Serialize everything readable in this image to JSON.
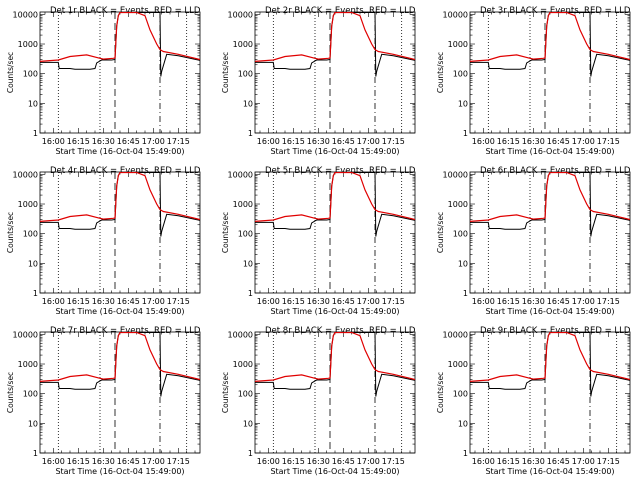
{
  "chart_data": {
    "type": "line",
    "layout": "3x3 grid",
    "xlabel": "Start Time (16-Oct-04 15:49:00)",
    "ylabel": "Counts/sec",
    "x_tick_labels": [
      "16:00",
      "16:15",
      "16:30",
      "16:45",
      "17:00",
      "17:15"
    ],
    "x_tick_minutes": [
      0,
      15,
      30,
      45,
      60,
      75
    ],
    "xlim_minutes_after_16_00": [
      -8,
      88
    ],
    "y_scale": "log",
    "ylim": [
      1,
      12000
    ],
    "y_tick_labels": [
      "1",
      "10",
      "100",
      "1000",
      "10000"
    ],
    "y_tick_values": [
      1,
      10,
      100,
      1000,
      10000
    ],
    "vertical_markers": [
      {
        "minute": 3,
        "style": "dotted"
      },
      {
        "minute": 28,
        "style": "dotted"
      },
      {
        "minute": 37,
        "style": "long-dash"
      },
      {
        "minute": 64,
        "style": "dash-dot"
      },
      {
        "minute": 80,
        "style": "dotted"
      }
    ],
    "series_colors": {
      "events": "#000000",
      "lld": "#e00000"
    },
    "panels": [
      {
        "title": "Det 1r BLACK = Events, RED = LLD"
      },
      {
        "title": "Det 2r BLACK = Events, RED = LLD"
      },
      {
        "title": "Det 3r BLACK = Events, RED = LLD"
      },
      {
        "title": "Det 4r BLACK = Events, RED = LLD"
      },
      {
        "title": "Det 5r BLACK = Events, RED = LLD"
      },
      {
        "title": "Det 6r BLACK = Events, RED = LLD"
      },
      {
        "title": "Det 7r BLACK = Events, RED = LLD"
      },
      {
        "title": "Det 8r BLACK = Events, RED = LLD"
      },
      {
        "title": "Det 9r BLACK = Events, RED = LLD"
      }
    ],
    "events_series": {
      "x": [
        -8,
        3,
        3.5,
        10,
        13,
        22,
        25,
        26,
        28,
        29,
        35,
        37,
        38,
        39,
        40,
        44,
        63,
        64,
        64.5,
        65,
        68,
        75,
        88
      ],
      "y": [
        240,
        240,
        150,
        150,
        140,
        140,
        150,
        230,
        270,
        290,
        290,
        300,
        4000,
        9000,
        11500,
        11500,
        11500,
        11500,
        80,
        120,
        450,
        400,
        280
      ]
    },
    "lld_series": {
      "x": [
        -8,
        3,
        10,
        20,
        28,
        30,
        36,
        37,
        38,
        39,
        40,
        44,
        50,
        55,
        58,
        62,
        64,
        66,
        75,
        88
      ],
      "y": [
        260,
        290,
        380,
        430,
        330,
        310,
        330,
        340,
        4000,
        9000,
        11500,
        11500,
        11500,
        9000,
        3000,
        1000,
        650,
        560,
        450,
        300
      ]
    }
  }
}
